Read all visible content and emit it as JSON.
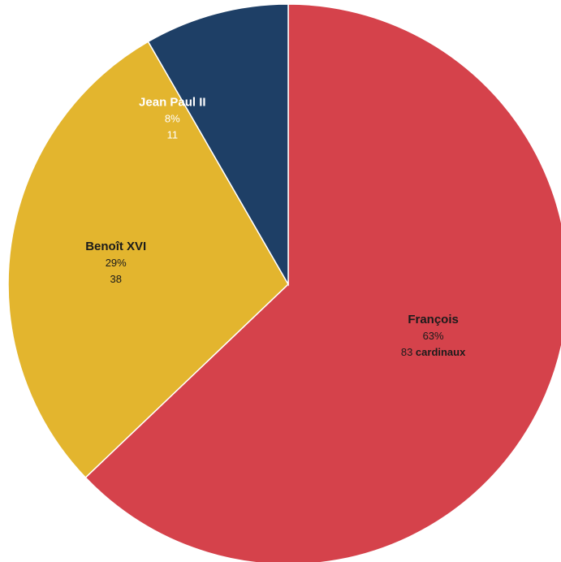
{
  "chart_data": {
    "type": "pie",
    "slices": [
      {
        "label": "François",
        "percent": "63%",
        "value": 83,
        "count_text": "83",
        "unit": "cardinaux",
        "color": "#d5424b",
        "text_color": "#1b1b1b"
      },
      {
        "label": "Benoît XVI",
        "percent": "29%",
        "value": 38,
        "count_text": "38",
        "unit": "",
        "color": "#e3b52e",
        "text_color": "#1b1b1b"
      },
      {
        "label": "Jean Paul II",
        "percent": "8%",
        "value": 11,
        "count_text": "11",
        "unit": "",
        "color": "#1e3f66",
        "text_color": "#ffffff"
      }
    ],
    "start": "12 o'clock",
    "direction": "clockwise"
  }
}
